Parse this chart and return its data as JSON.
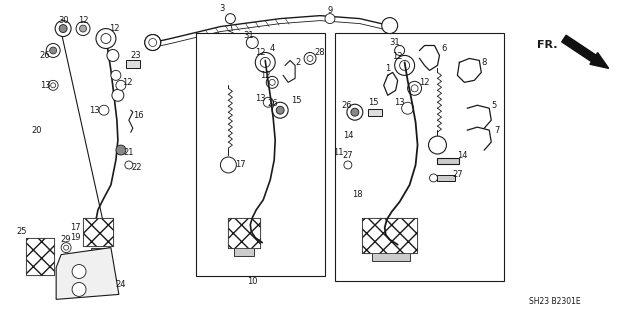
{
  "bg_color": "#ffffff",
  "line_color": "#1a1a1a",
  "diagram_code": "SH23 B2301E",
  "fr_label": "FR.",
  "fig_width": 6.4,
  "fig_height": 3.19,
  "dpi": 100,
  "label_fontsize": 6.0
}
